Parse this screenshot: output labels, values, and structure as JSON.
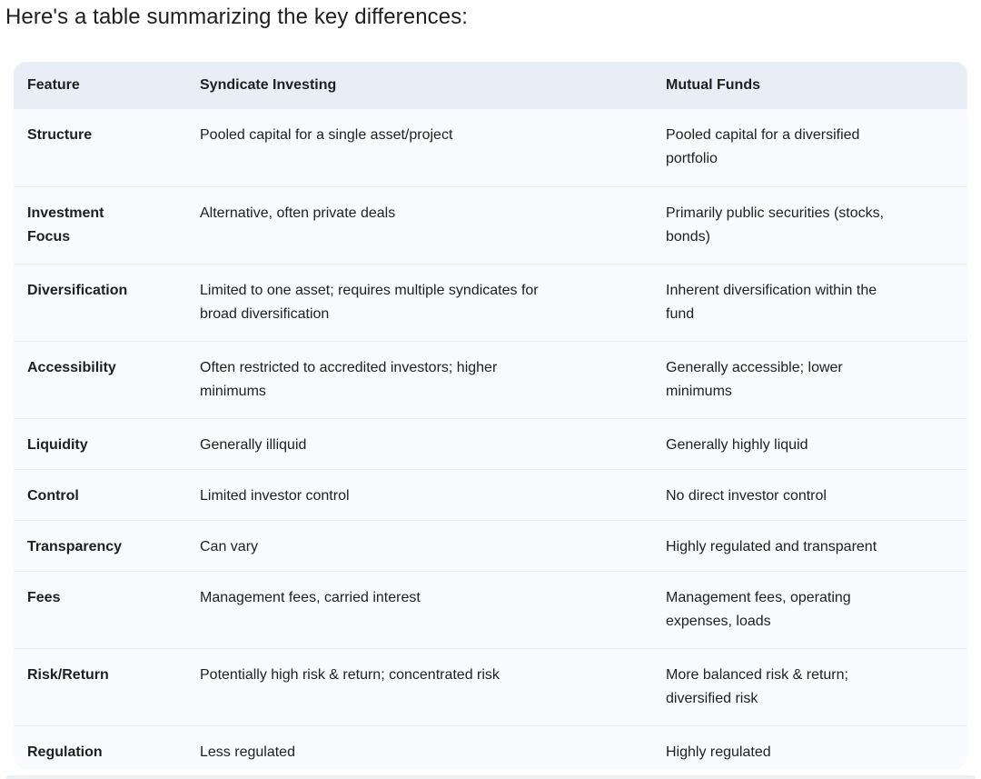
{
  "intro": "Here's a table summarizing the key differences:",
  "table": {
    "headers": [
      "Feature",
      "Syndicate Investing",
      "Mutual Funds"
    ],
    "rows": [
      {
        "feature": "Structure",
        "syndicate": "Pooled capital for a single asset/project",
        "mutual": "Pooled capital for a diversified portfolio"
      },
      {
        "feature": "Investment Focus",
        "syndicate": "Alternative, often private deals",
        "mutual": "Primarily public securities (stocks, bonds)"
      },
      {
        "feature": "Diversification",
        "syndicate": "Limited to one asset; requires multiple syndicates for broad diversification",
        "mutual": "Inherent diversification within the fund"
      },
      {
        "feature": "Accessibility",
        "syndicate": "Often restricted to accredited investors; higher minimums",
        "mutual": "Generally accessible; lower minimums"
      },
      {
        "feature": "Liquidity",
        "syndicate": "Generally illiquid",
        "mutual": "Generally highly liquid"
      },
      {
        "feature": "Control",
        "syndicate": "Limited investor control",
        "mutual": "No direct investor control"
      },
      {
        "feature": "Transparency",
        "syndicate": "Can vary",
        "mutual": "Highly regulated and transparent"
      },
      {
        "feature": "Fees",
        "syndicate": "Management fees, carried interest",
        "mutual": "Management fees, operating expenses, loads"
      },
      {
        "feature": "Risk/Return",
        "syndicate": "Potentially high risk & return; concentrated risk",
        "mutual": "More balanced risk & return; diversified risk"
      },
      {
        "feature": "Regulation",
        "syndicate": "Less regulated",
        "mutual": "Highly regulated"
      }
    ]
  },
  "colors": {
    "header_bg": "#e9eef6",
    "row_bg": "#f8fafd",
    "divider": "#e9ecf2",
    "text": "#1f1f1f"
  }
}
